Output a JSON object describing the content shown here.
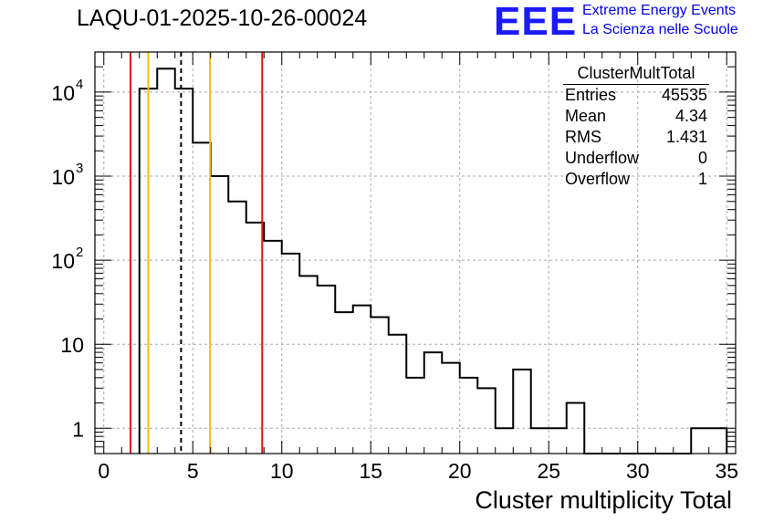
{
  "title": "LAQU-01-2025-10-26-00024",
  "logo": {
    "text": "EEE",
    "line1": "Extreme Energy Events",
    "line2": "La Scienza nelle Scuole",
    "color": "#1a1aff"
  },
  "stats_box": {
    "title": "ClusterMultTotal",
    "rows": [
      {
        "label": "Entries",
        "value": "45535"
      },
      {
        "label": "Mean",
        "value": "4.34"
      },
      {
        "label": "RMS",
        "value": "1.431"
      },
      {
        "label": "Underflow",
        "value": "0"
      },
      {
        "label": "Overflow",
        "value": "1"
      }
    ]
  },
  "chart_data": {
    "type": "histogram",
    "title": "LAQU-01-2025-10-26-00024",
    "xlabel": "Cluster multiplicity Total",
    "ylabel": "",
    "y_scale": "log",
    "xlim": [
      -0.5,
      35.5
    ],
    "ylim": [
      0.5,
      30000
    ],
    "grid": true,
    "x_ticks": [
      0,
      5,
      10,
      15,
      20,
      25,
      30,
      35
    ],
    "y_ticks": [
      {
        "value": 1,
        "label": "1"
      },
      {
        "value": 10,
        "label": "10"
      },
      {
        "value": 100,
        "label": "10",
        "exp": "2"
      },
      {
        "value": 1000,
        "label": "10",
        "exp": "3"
      },
      {
        "value": 10000,
        "label": "10",
        "exp": "4"
      }
    ],
    "bins": [
      {
        "x": 2.5,
        "w": 1,
        "y": 11000
      },
      {
        "x": 3.5,
        "w": 1,
        "y": 19000
      },
      {
        "x": 4.5,
        "w": 1,
        "y": 11000
      },
      {
        "x": 5.5,
        "w": 1,
        "y": 2500
      },
      {
        "x": 6.5,
        "w": 1,
        "y": 1000
      },
      {
        "x": 7.5,
        "w": 1,
        "y": 500
      },
      {
        "x": 8.5,
        "w": 1,
        "y": 280
      },
      {
        "x": 9.5,
        "w": 1,
        "y": 170
      },
      {
        "x": 10.5,
        "w": 1,
        "y": 120
      },
      {
        "x": 11.5,
        "w": 1,
        "y": 65
      },
      {
        "x": 12.5,
        "w": 1,
        "y": 50
      },
      {
        "x": 13.5,
        "w": 1,
        "y": 24
      },
      {
        "x": 14.5,
        "w": 1,
        "y": 29
      },
      {
        "x": 15.5,
        "w": 1,
        "y": 21
      },
      {
        "x": 16.5,
        "w": 1,
        "y": 13
      },
      {
        "x": 17.5,
        "w": 1,
        "y": 4
      },
      {
        "x": 18.5,
        "w": 1,
        "y": 8
      },
      {
        "x": 19.5,
        "w": 1,
        "y": 6
      },
      {
        "x": 20.5,
        "w": 1,
        "y": 4
      },
      {
        "x": 21.5,
        "w": 1,
        "y": 3
      },
      {
        "x": 22.5,
        "w": 1,
        "y": 1
      },
      {
        "x": 23.5,
        "w": 1,
        "y": 5
      },
      {
        "x": 24.5,
        "w": 1,
        "y": 1
      },
      {
        "x": 25.5,
        "w": 1,
        "y": 1
      },
      {
        "x": 26.5,
        "w": 1,
        "y": 2
      },
      {
        "x": 27.5,
        "w": 6,
        "y": 0
      },
      {
        "x": 33.5,
        "w": 1,
        "y": 1
      },
      {
        "x": 34.5,
        "w": 1,
        "y": 1
      }
    ],
    "vlines": [
      {
        "x": 1.5,
        "color": "#dd1111",
        "style": "solid"
      },
      {
        "x": 2.5,
        "color": "#f0c000",
        "style": "solid"
      },
      {
        "x": 4.34,
        "color": "#000000",
        "style": "dashed"
      },
      {
        "x": 5.97,
        "color": "#f0c000",
        "style": "solid"
      },
      {
        "x": 8.9,
        "color": "#dd1111",
        "style": "solid"
      }
    ]
  }
}
